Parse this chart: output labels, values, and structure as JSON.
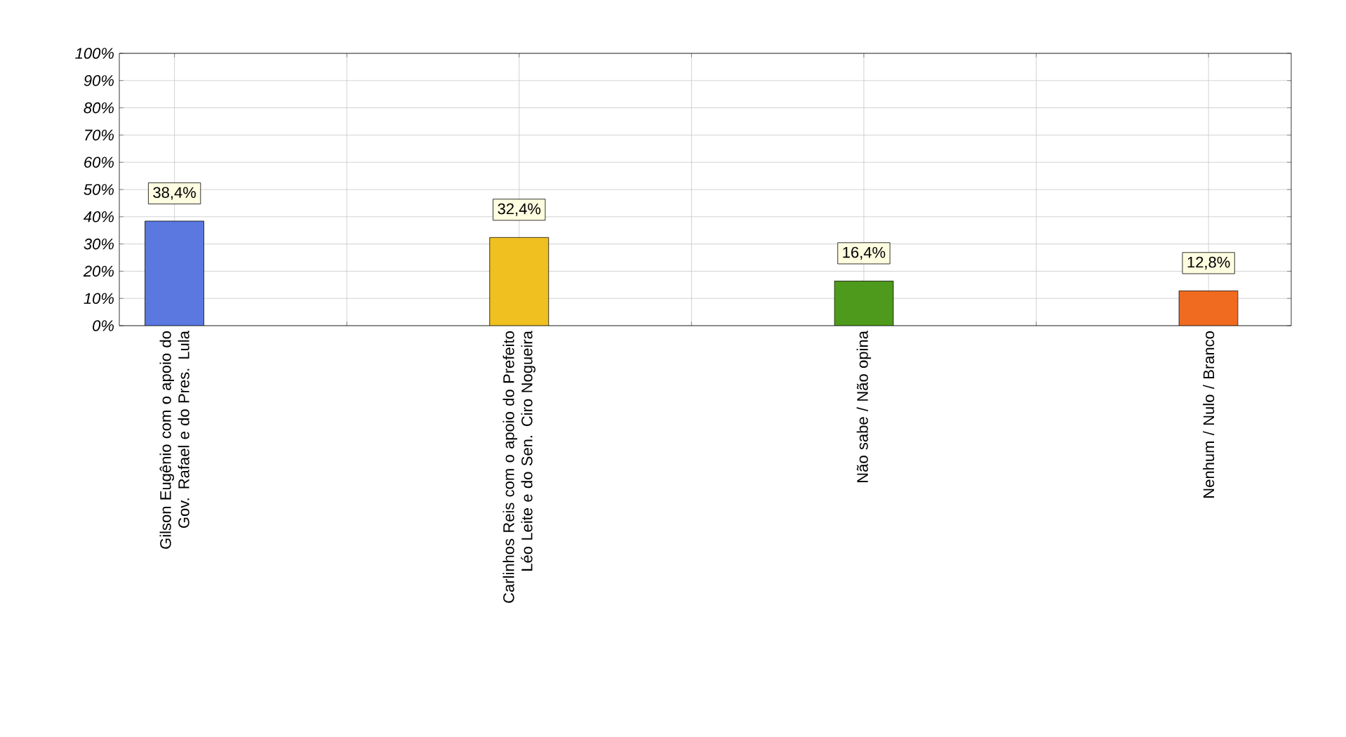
{
  "chart_data": {
    "type": "bar",
    "categories": [
      "Gilson Eugênio com o apoio do Gov. Rafael e do Pres. Lula",
      "Carlinhos Reis com o apoio do Prefeito Léo Leite e do Sen. Ciro Nogueira",
      "Não sabe / Não opina",
      "Nenhum / Nulo / Branco"
    ],
    "values": [
      38.4,
      32.4,
      16.4,
      12.8
    ],
    "colors": [
      "#5a78e0",
      "#f0c020",
      "#4e9a1c",
      "#f06a20"
    ],
    "value_labels": [
      "38,4%",
      "32,4%",
      "16,4%",
      "12,8%"
    ],
    "ylim": [
      0,
      100
    ],
    "yticks": [
      {
        "value": 0,
        "label": "0%"
      },
      {
        "value": 10,
        "label": "10%"
      },
      {
        "value": 20,
        "label": "20%"
      },
      {
        "value": 30,
        "label": "30%"
      },
      {
        "value": 40,
        "label": "40%"
      },
      {
        "value": 50,
        "label": "50%"
      },
      {
        "value": 60,
        "label": "60%"
      },
      {
        "value": 70,
        "label": "70%"
      },
      {
        "value": 80,
        "label": "80%"
      },
      {
        "value": 90,
        "label": "90%"
      },
      {
        "value": 100,
        "label": "100%"
      }
    ],
    "grid": true
  }
}
